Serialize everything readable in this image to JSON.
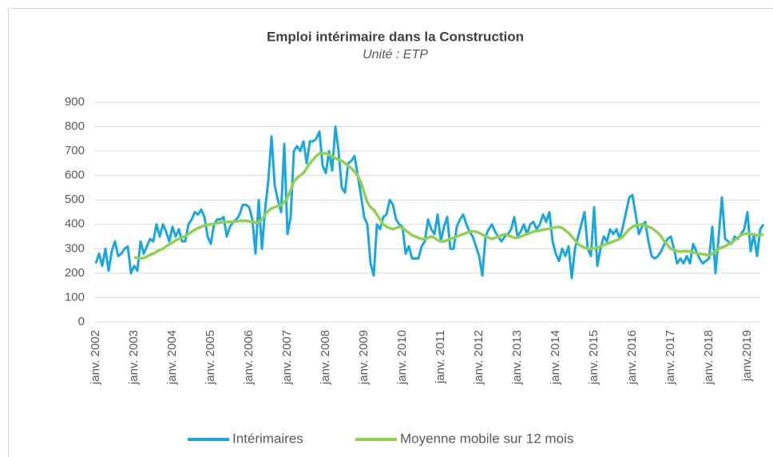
{
  "chart_data": {
    "type": "line",
    "title": "Emploi intérimaire dans la Construction",
    "subtitle": "Unité : ETP",
    "categories": [
      "janv. 2002",
      null,
      null,
      null,
      null,
      null,
      null,
      null,
      null,
      null,
      null,
      null,
      "janv. 2003",
      null,
      null,
      null,
      null,
      null,
      null,
      null,
      null,
      null,
      null,
      null,
      "janv. 2004",
      null,
      null,
      null,
      null,
      null,
      null,
      null,
      null,
      null,
      null,
      null,
      "janv. 2005",
      null,
      null,
      null,
      null,
      null,
      null,
      null,
      null,
      null,
      null,
      null,
      "janv. 2006",
      null,
      null,
      null,
      null,
      null,
      null,
      null,
      null,
      null,
      null,
      null,
      "janv. 2007",
      null,
      null,
      null,
      null,
      null,
      null,
      null,
      null,
      null,
      null,
      null,
      "janv. 2008",
      null,
      null,
      null,
      null,
      null,
      null,
      null,
      null,
      null,
      null,
      null,
      "janv. 2009",
      null,
      null,
      null,
      null,
      null,
      null,
      null,
      null,
      null,
      null,
      null,
      "janv. 2010",
      null,
      null,
      null,
      null,
      null,
      null,
      null,
      null,
      null,
      null,
      null,
      "janv. 2011",
      null,
      null,
      null,
      null,
      null,
      null,
      null,
      null,
      null,
      null,
      null,
      "janv. 2012",
      null,
      null,
      null,
      null,
      null,
      null,
      null,
      null,
      null,
      null,
      null,
      "janv. 2013",
      null,
      null,
      null,
      null,
      null,
      null,
      null,
      null,
      null,
      null,
      null,
      "janv. 2014",
      null,
      null,
      null,
      null,
      null,
      null,
      null,
      null,
      null,
      null,
      null,
      "janv. 2015",
      null,
      null,
      null,
      null,
      null,
      null,
      null,
      null,
      null,
      null,
      null,
      "janv. 2016",
      null,
      null,
      null,
      null,
      null,
      null,
      null,
      null,
      null,
      null,
      null,
      "janv. 2017",
      null,
      null,
      null,
      null,
      null,
      null,
      null,
      null,
      null,
      null,
      null,
      "janv. 2018",
      null,
      null,
      null,
      null,
      null,
      null,
      null,
      null,
      null,
      null,
      null,
      "janv.2019",
      null,
      null,
      null,
      null,
      null
    ],
    "series": [
      {
        "name": "Intérimaires",
        "color": "#1aa7e0",
        "values": [
          240,
          280,
          230,
          300,
          210,
          290,
          330,
          270,
          280,
          300,
          310,
          200,
          230,
          210,
          330,
          280,
          310,
          340,
          330,
          400,
          350,
          400,
          370,
          330,
          390,
          350,
          380,
          330,
          330,
          400,
          420,
          450,
          440,
          460,
          430,
          350,
          320,
          400,
          420,
          420,
          430,
          350,
          390,
          410,
          420,
          440,
          480,
          480,
          470,
          420,
          280,
          500,
          300,
          460,
          580,
          760,
          560,
          500,
          450,
          730,
          360,
          430,
          700,
          720,
          700,
          740,
          650,
          740,
          740,
          750,
          780,
          640,
          610,
          700,
          620,
          800,
          700,
          550,
          530,
          650,
          660,
          680,
          600,
          520,
          430,
          400,
          240,
          190,
          400,
          380,
          430,
          440,
          500,
          480,
          420,
          400,
          390,
          280,
          310,
          260,
          260,
          260,
          310,
          330,
          420,
          380,
          360,
          440,
          330,
          390,
          430,
          300,
          300,
          390,
          420,
          440,
          400,
          370,
          350,
          310,
          270,
          190,
          350,
          380,
          400,
          370,
          350,
          330,
          350,
          360,
          380,
          430,
          350,
          370,
          400,
          360,
          400,
          410,
          380,
          400,
          440,
          410,
          450,
          330,
          280,
          250,
          300,
          270,
          310,
          180,
          300,
          350,
          400,
          450,
          300,
          270,
          470,
          230,
          300,
          350,
          330,
          380,
          360,
          380,
          340,
          390,
          450,
          510,
          520,
          440,
          360,
          390,
          410,
          330,
          270,
          260,
          270,
          290,
          320,
          340,
          350,
          300,
          240,
          260,
          240,
          270,
          240,
          320,
          290,
          260,
          240,
          250,
          260,
          390,
          200,
          350,
          510,
          340,
          330,
          320,
          350,
          340,
          360,
          380,
          450,
          290,
          360,
          270,
          380,
          400
        ]
      },
      {
        "name": "Moyenne mobile sur 12 mois",
        "color": "#92d050",
        "values": [
          null,
          null,
          null,
          null,
          null,
          null,
          null,
          null,
          null,
          null,
          null,
          null,
          265,
          262,
          260,
          262,
          268,
          275,
          280,
          288,
          295,
          300,
          310,
          318,
          325,
          335,
          340,
          345,
          352,
          360,
          370,
          378,
          385,
          390,
          395,
          398,
          400,
          402,
          405,
          408,
          410,
          410,
          410,
          410,
          412,
          414,
          415,
          415,
          412,
          410,
          408,
          410,
          420,
          440,
          455,
          465,
          470,
          475,
          480,
          490,
          510,
          540,
          575,
          590,
          600,
          610,
          630,
          650,
          665,
          680,
          690,
          690,
          690,
          685,
          680,
          670,
          665,
          660,
          650,
          640,
          630,
          615,
          600,
          570,
          530,
          490,
          470,
          460,
          440,
          420,
          400,
          390,
          385,
          380,
          385,
          390,
          385,
          375,
          365,
          355,
          350,
          345,
          340,
          340,
          345,
          350,
          345,
          335,
          330,
          330,
          335,
          340,
          345,
          350,
          355,
          360,
          365,
          370,
          372,
          370,
          365,
          358,
          350,
          345,
          340,
          345,
          350,
          355,
          360,
          355,
          350,
          345,
          345,
          350,
          355,
          360,
          365,
          370,
          372,
          375,
          378,
          380,
          382,
          385,
          388,
          390,
          385,
          375,
          365,
          350,
          335,
          320,
          310,
          305,
          300,
          300,
          302,
          305,
          310,
          315,
          320,
          325,
          330,
          335,
          340,
          350,
          365,
          380,
          390,
          395,
          398,
          400,
          395,
          390,
          385,
          375,
          365,
          350,
          330,
          315,
          300,
          295,
          290,
          288,
          290,
          290,
          288,
          285,
          282,
          280,
          278,
          275,
          275,
          280,
          290,
          300,
          305,
          310,
          318,
          325,
          335,
          345,
          355,
          362,
          362,
          360,
          358,
          355,
          355,
          360
        ]
      }
    ],
    "ylim": [
      0,
      900
    ],
    "yticks": [
      0,
      100,
      200,
      300,
      400,
      500,
      600,
      700,
      800,
      900
    ],
    "grid": true
  }
}
